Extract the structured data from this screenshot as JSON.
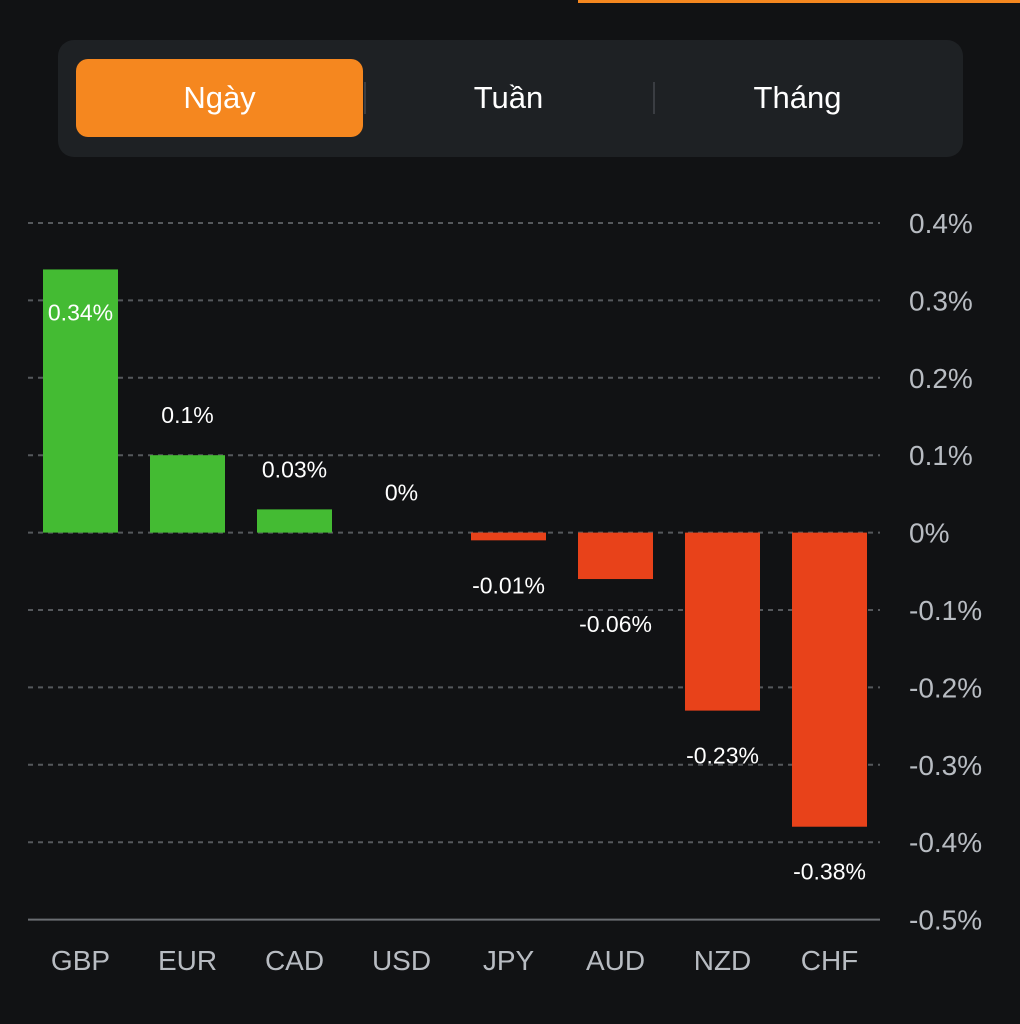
{
  "tabs": [
    {
      "label": "Ngày",
      "active": true
    },
    {
      "label": "Tuần",
      "active": false
    },
    {
      "label": "Tháng",
      "active": false
    }
  ],
  "colors": {
    "accent": "#f5871f",
    "positive": "#44bb33",
    "negative": "#e8421a",
    "grid": "#55585c",
    "axis_text": "#b8bcc2",
    "background": "#111214",
    "panel": "#1e2124"
  },
  "chart_data": {
    "type": "bar",
    "categories": [
      "GBP",
      "EUR",
      "CAD",
      "USD",
      "JPY",
      "AUD",
      "NZD",
      "CHF"
    ],
    "values": [
      0.34,
      0.1,
      0.03,
      0,
      -0.01,
      -0.06,
      -0.23,
      -0.38
    ],
    "value_labels": [
      "0.34%",
      "0.1%",
      "0.03%",
      "0%",
      "-0.01%",
      "-0.06%",
      "-0.23%",
      "-0.38%"
    ],
    "ylim": [
      -0.5,
      0.4
    ],
    "yticks": [
      0.4,
      0.3,
      0.2,
      0.1,
      0,
      -0.1,
      -0.2,
      -0.3,
      -0.4,
      -0.5
    ],
    "ytick_labels": [
      "0.4%",
      "0.3%",
      "0.2%",
      "0.1%",
      "0%",
      "-0.1%",
      "-0.2%",
      "-0.3%",
      "-0.4%",
      "-0.5%"
    ],
    "y_axis_side": "right",
    "grid": true,
    "grid_style": "dashed",
    "title": "",
    "xlabel": "",
    "ylabel": ""
  }
}
